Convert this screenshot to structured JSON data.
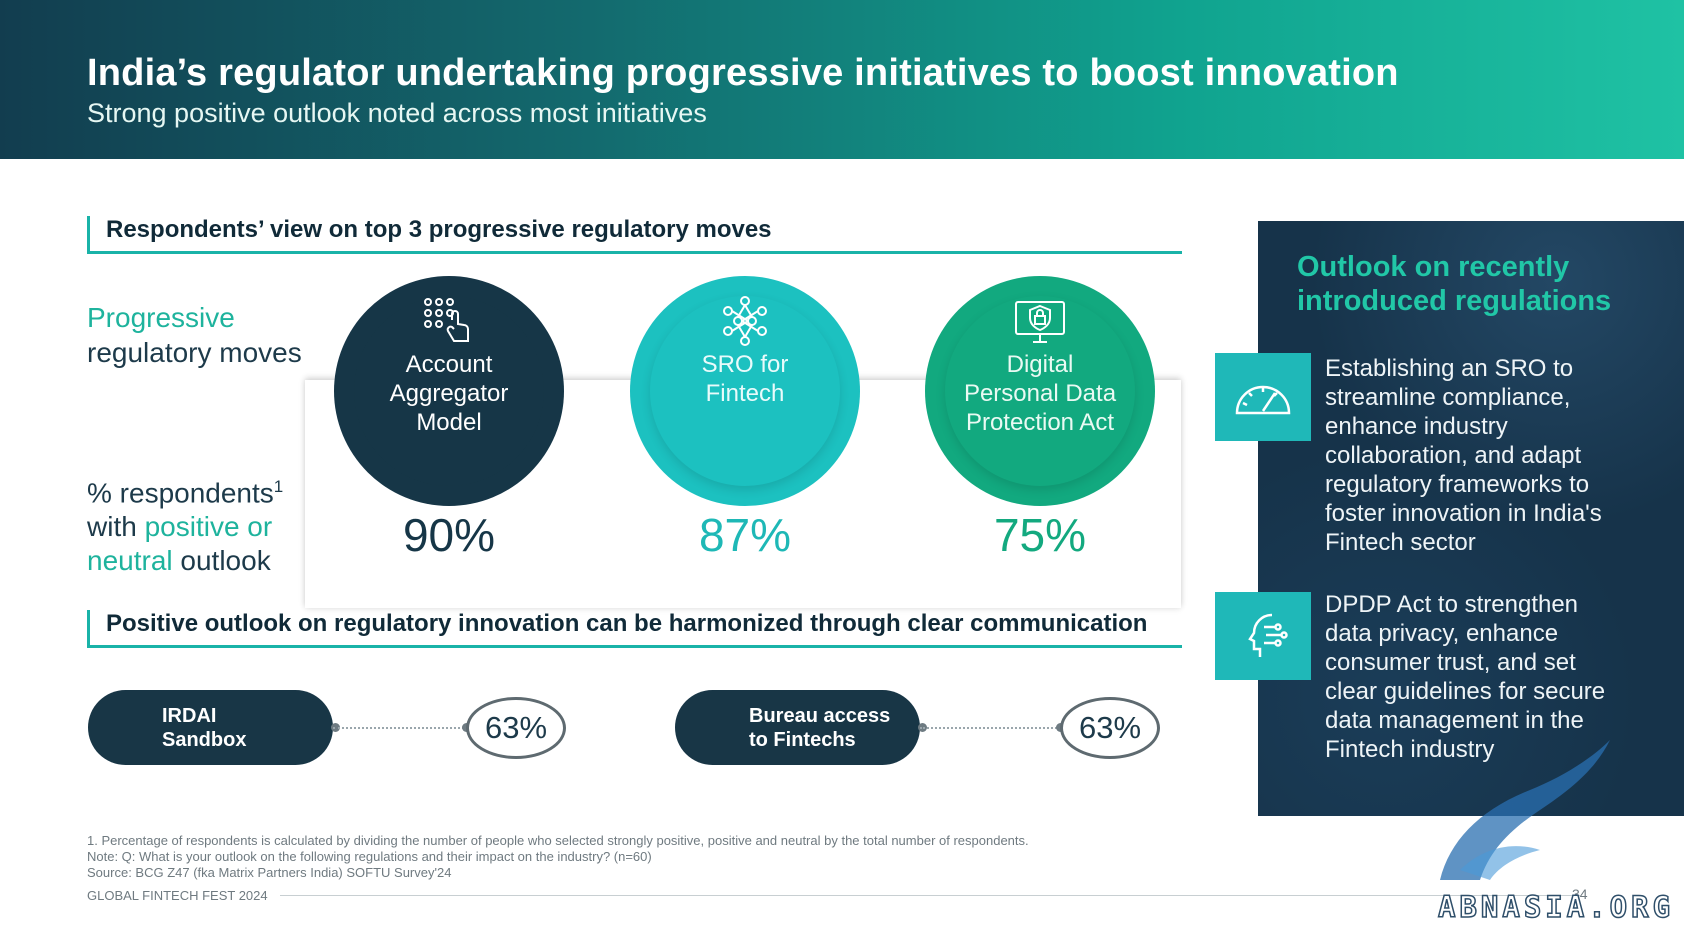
{
  "header": {
    "title": "India’s regulator undertaking progressive initiatives to boost innovation",
    "subtitle": "Strong positive outlook noted across most initiatives"
  },
  "section1": {
    "heading": "Respondents’ view on top 3 progressive regulatory moves",
    "label_prog_1": "Progressive",
    "label_prog_2": "regulatory moves",
    "label_resp_1": "% respondents",
    "label_resp_sup": "1",
    "label_resp_2": "with ",
    "label_resp_3": "positive or",
    "label_resp_4": "neutral",
    "label_resp_5": " outlook",
    "moves": [
      {
        "lines": [
          "Account",
          "Aggregator",
          "Model"
        ],
        "percent": "90%",
        "icon": "hand-network-icon",
        "color": "#163647"
      },
      {
        "lines": [
          "SRO for",
          "Fintech"
        ],
        "percent": "87%",
        "icon": "network-hexagon-icon",
        "color": "#1cc1c0"
      },
      {
        "lines": [
          "Digital",
          "Personal Data",
          "Protection Act"
        ],
        "percent": "75%",
        "icon": "monitor-shield-lock-icon",
        "color": "#12a97f"
      }
    ]
  },
  "section2": {
    "heading": "Positive outlook on regulatory innovation can be harmonized through clear communication",
    "items": [
      {
        "line1": "IRDAI",
        "line2": "Sandbox",
        "percent": "63%"
      },
      {
        "line1": "Bureau access",
        "line2": "to Fintechs",
        "percent": "63%"
      }
    ]
  },
  "sidebar": {
    "title_1": "Outlook on recently",
    "title_2": "introduced regulations",
    "items": [
      {
        "icon": "speedometer-icon",
        "text": "Establishing an SRO to streamline compliance, enhance industry collaboration, and adapt regulatory frameworks to foster innovation in India's Fintech sector"
      },
      {
        "icon": "digital-head-icon",
        "text": "DPDP Act to strengthen data privacy, enhance consumer trust, and set clear guidelines for secure data management in the Fintech industry"
      }
    ]
  },
  "footnotes": {
    "line1": "1. Percentage of respondents is calculated by dividing the number of people who selected strongly positive, positive and neutral by the total number of respondents.",
    "line2": "Note: Q: What is your outlook on the following regulations and their impact on the industry? (n=60)",
    "line3": "Source: BCG Z47 (fka Matrix Partners India) SOFTU Survey'24"
  },
  "footer": {
    "label": "GLOBAL FINTECH FEST 2024",
    "page": "34"
  },
  "watermark": "ABNASIA.ORG",
  "colors": {
    "navy": "#163647",
    "teal": "#1cc1c0",
    "green": "#12a97f",
    "accent_text": "#1eb39d"
  }
}
